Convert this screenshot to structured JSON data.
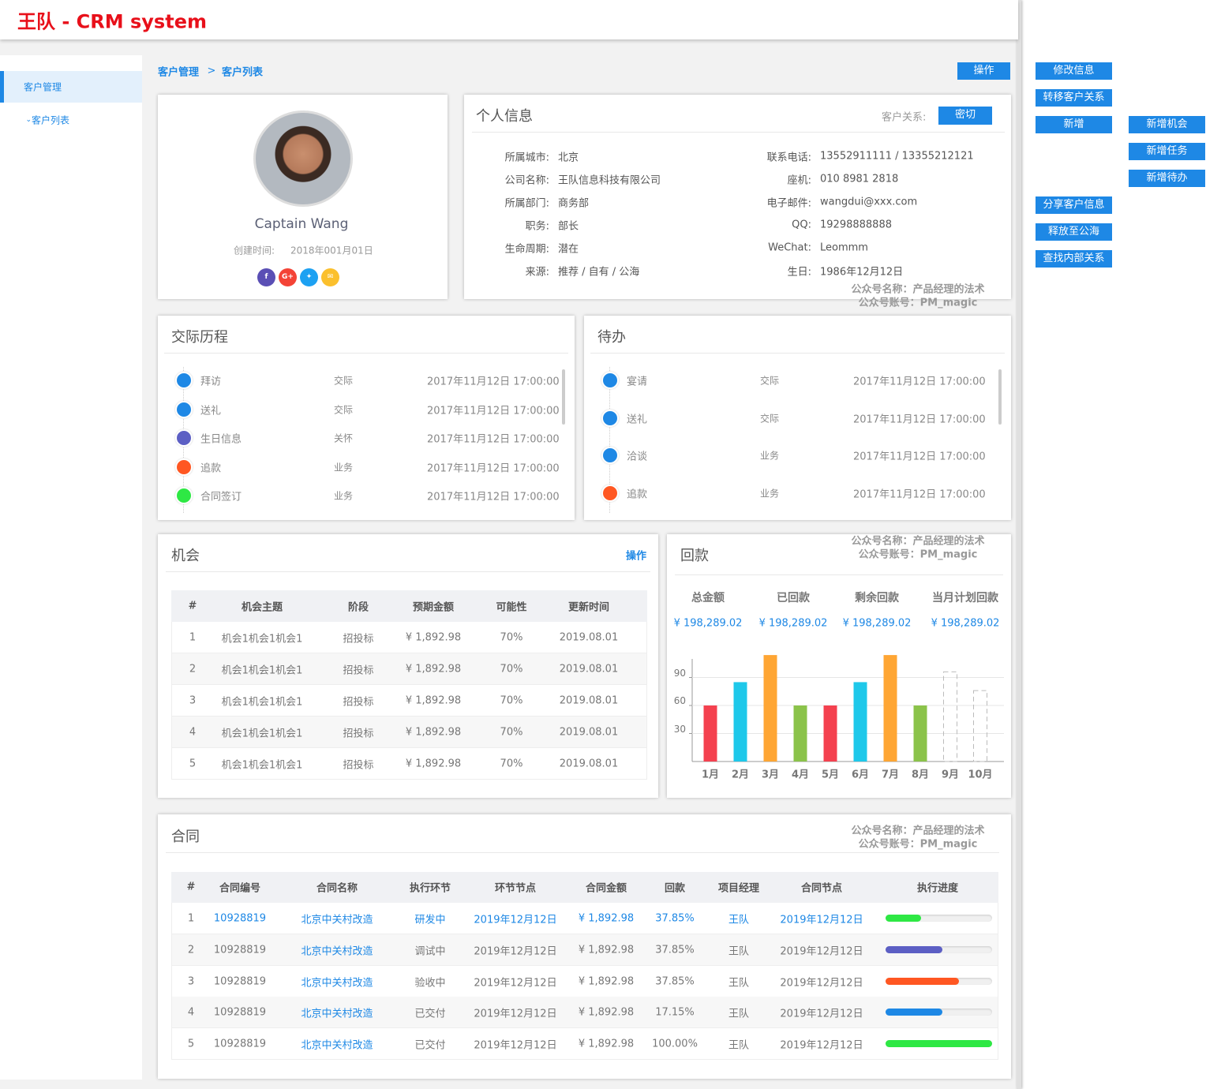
{
  "header": {
    "title": "王队 - CRM system"
  },
  "sidebar": {
    "menu": "客户管理",
    "submenu": "客户列表"
  },
  "breadcrumb": {
    "items": [
      "客户管理",
      "客户列表"
    ],
    "separator": ">"
  },
  "top_action": "操作",
  "side_actions": [
    "修改信息",
    "转移客户关系",
    "新增",
    "分享客户信息",
    "释放至公海",
    "查找内部关系"
  ],
  "sub_actions": [
    "新增机会",
    "新增任务",
    "新增待办"
  ],
  "watermark": [
    "公众号名称：产品经理的法术",
    "公众号账号：PM_magic"
  ],
  "profile": {
    "name": "Captain Wang",
    "created_label": "创建时间:",
    "created": "2018年001月01日",
    "social": [
      "f",
      "G+"
    ]
  },
  "personal": {
    "title": "个人信息",
    "relation_label": "客户关系:",
    "relation": "密切",
    "left": [
      [
        "所属城市:",
        "北京"
      ],
      [
        "公司名称:",
        "王队信息科技有限公司"
      ],
      [
        "所属部门:",
        "商务部"
      ],
      [
        "职务:",
        "部长"
      ],
      [
        "生命周期:",
        "潜在"
      ],
      [
        "来源:",
        "推荐 / 自有 / 公海"
      ]
    ],
    "right": [
      [
        "联系电话:",
        "13552911111 / 13355212121"
      ],
      [
        "座机:",
        "010 8981 2818"
      ],
      [
        "电子邮件:",
        "wangdui@xxx.com"
      ],
      [
        "QQ:",
        "19298888888"
      ],
      [
        "WeChat:",
        "Leommm"
      ],
      [
        "生日:",
        "1986年12月12日"
      ]
    ]
  },
  "history": {
    "title": "交际历程",
    "items": [
      {
        "name": "拜访",
        "type": "交际",
        "time": "2017年11月12日 17:00:00",
        "color": "#1e88e5"
      },
      {
        "name": "送礼",
        "type": "交际",
        "time": "2017年11月12日 17:00:00",
        "color": "#1e88e5"
      },
      {
        "name": "生日信息",
        "type": "关怀",
        "time": "2017年11月12日 17:00:00",
        "color": "#5c5fc4"
      },
      {
        "name": "追款",
        "type": "业务",
        "time": "2017年11月12日 17:00:00",
        "color": "#ff5722"
      },
      {
        "name": "合同签订",
        "type": "业务",
        "time": "2017年11月12日 17:00:00",
        "color": "#2ee844"
      }
    ]
  },
  "todo": {
    "title": "待办",
    "items": [
      {
        "name": "宴请",
        "type": "交际",
        "time": "2017年11月12日 17:00:00",
        "color": "#1e88e5"
      },
      {
        "name": "送礼",
        "type": "交际",
        "time": "2017年11月12日 17:00:00",
        "color": "#1e88e5"
      },
      {
        "name": "洽谈",
        "type": "业务",
        "time": "2017年11月12日 17:00:00",
        "color": "#1e88e5"
      },
      {
        "name": "追款",
        "type": "业务",
        "time": "2017年11月12日 17:00:00",
        "color": "#ff5722"
      }
    ]
  },
  "opportunities": {
    "title": "机会",
    "action": "操作",
    "columns": [
      "#",
      "机会主题",
      "阶段",
      "预期金额",
      "可能性",
      "更新时间"
    ],
    "rows": [
      [
        "1",
        "机会1机会1机会1",
        "招投标",
        "¥ 1,892.98",
        "70%",
        "2019.08.01"
      ],
      [
        "2",
        "机会1机会1机会1",
        "招投标",
        "¥ 1,892.98",
        "70%",
        "2019.08.01"
      ],
      [
        "3",
        "机会1机会1机会1",
        "招投标",
        "¥ 1,892.98",
        "70%",
        "2019.08.01"
      ],
      [
        "4",
        "机会1机会1机会1",
        "招投标",
        "¥ 1,892.98",
        "70%",
        "2019.08.01"
      ],
      [
        "5",
        "机会1机会1机会1",
        "招投标",
        "¥ 1,892.98",
        "70%",
        "2019.08.01"
      ]
    ]
  },
  "payment": {
    "title": "回款",
    "summary_labels": [
      "总金额",
      "已回款",
      "剩余回款",
      "当月计划回款"
    ],
    "summary_values": [
      "¥ 198,289.02",
      "¥ 198,289.02",
      "¥ 198,289.02",
      "¥ 198,289.02"
    ],
    "chart": {
      "type": "bar",
      "categories": [
        "1月",
        "2月",
        "3月",
        "4月",
        "5月",
        "6月",
        "7月",
        "8月",
        "9月",
        "10月"
      ],
      "values": [
        60,
        85,
        114,
        60,
        60,
        85,
        114,
        60,
        96,
        76
      ],
      "colors": [
        "#f4414f",
        "#1ec8ea",
        "#ffa634",
        "#8bc34a",
        "#f4414f",
        "#1ec8ea",
        "#ffa634",
        "#8bc34a",
        "#bbbbbb",
        "#bbbbbb"
      ],
      "dashed": [
        false,
        false,
        false,
        false,
        false,
        false,
        false,
        false,
        true,
        true
      ],
      "ylim": [
        0,
        120
      ],
      "yticks": [
        30,
        60,
        90
      ],
      "grid": true
    }
  },
  "contracts": {
    "title": "合同",
    "columns": [
      "#",
      "合同编号",
      "合同名称",
      "执行环节",
      "环节节点",
      "合同金额",
      "回款",
      "项目经理",
      "合同节点",
      "执行进度"
    ],
    "rows": [
      [
        "1",
        "10928819",
        "北京中关村改造",
        "研发中",
        "2019年12月12日",
        "¥ 1,892.98",
        "37.85%",
        "王队",
        "2019年12月12日"
      ],
      [
        "2",
        "10928819",
        "北京中关村改造",
        "调试中",
        "2019年12月12日",
        "¥ 1,892.98",
        "37.85%",
        "王队",
        "2019年12月12日"
      ],
      [
        "3",
        "10928819",
        "北京中关村改造",
        "验收中",
        "2019年12月12日",
        "¥ 1,892.98",
        "37.85%",
        "王队",
        "2019年12月12日"
      ],
      [
        "4",
        "10928819",
        "北京中关村改造",
        "已交付",
        "2019年12月12日",
        "¥ 1,892.98",
        "17.15%",
        "王队",
        "2019年12月12日"
      ],
      [
        "5",
        "10928819",
        "北京中关村改造",
        "已交付",
        "2019年12月12日",
        "¥ 1,892.98",
        "100.00%",
        "王队",
        "2019年12月12日"
      ]
    ],
    "progress": [
      33,
      53,
      69,
      53,
      100
    ],
    "progress_colors": [
      "#2ee844",
      "#5c5fc4",
      "#ff5722",
      "#1e88e5",
      "#2ee844"
    ]
  }
}
